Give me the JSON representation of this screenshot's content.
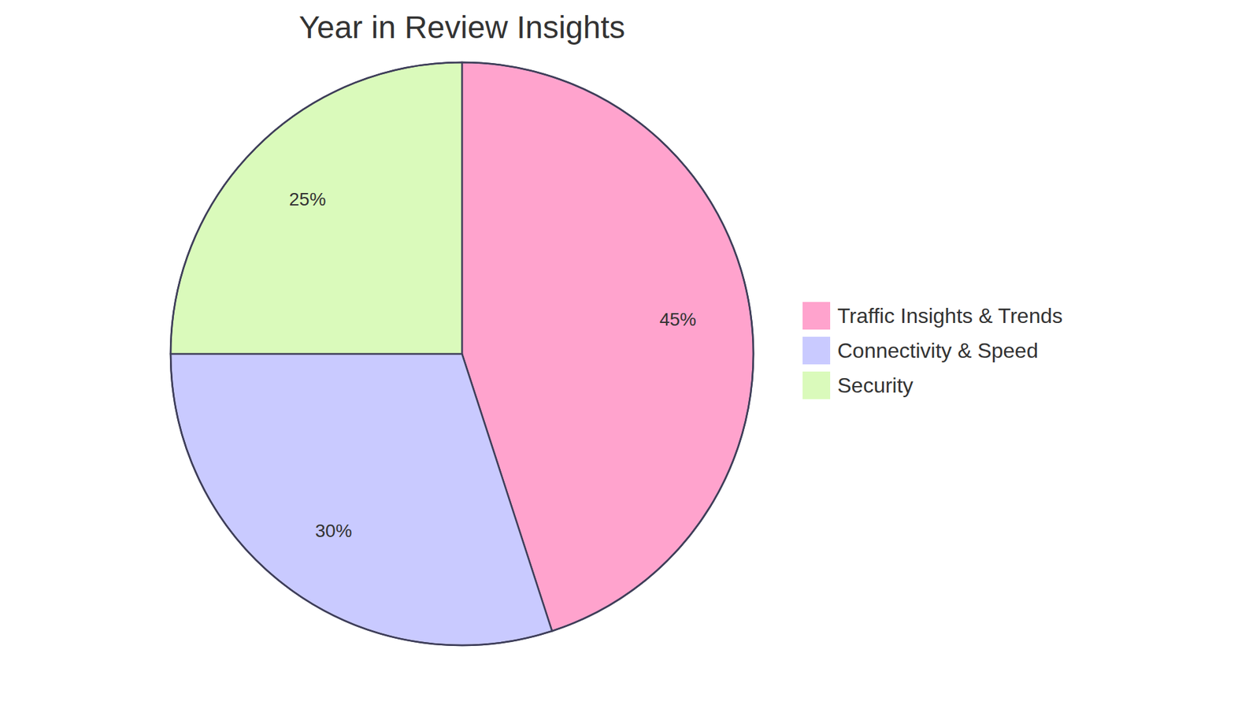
{
  "chart_data": {
    "type": "pie",
    "title": "Year in Review Insights",
    "categories": [
      "Traffic Insights & Trends",
      "Connectivity & Speed",
      "Security"
    ],
    "values": [
      45,
      30,
      25
    ],
    "value_labels": [
      "45%",
      "30%",
      "25%"
    ],
    "colors": [
      "#ffa3cd",
      "#c9caff",
      "#dafabb"
    ],
    "data_labels": true,
    "legend": "right"
  }
}
